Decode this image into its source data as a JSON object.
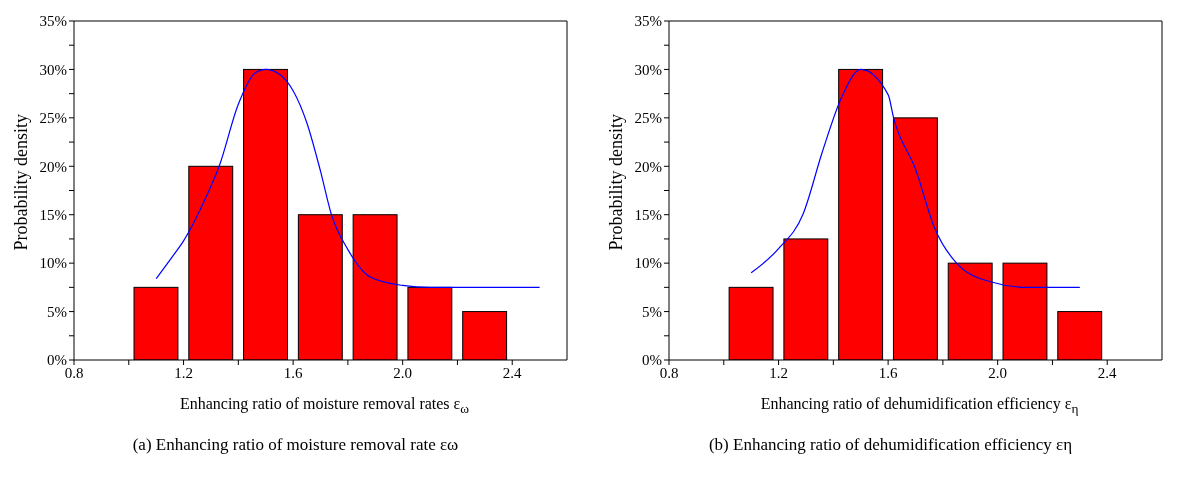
{
  "chart_data": [
    {
      "type": "histogram",
      "xlabel": "Enhancing ratio of moisture removal rates ε$_{ω}$",
      "ylabel": "Probability density",
      "annotations": [
        "(a) Enhancing ratio of moisture removal rate εω"
      ],
      "bins": [
        1.0,
        1.2,
        1.4,
        1.6,
        1.8,
        2.0,
        2.2,
        2.4
      ],
      "values": [
        7.5,
        20,
        30,
        15,
        15,
        7.5,
        5
      ],
      "color": "#ff0000",
      "series": [
        {
          "type": "line",
          "color": "#0000ff",
          "x": [
            1.1,
            1.16,
            1.2,
            1.28,
            1.33,
            1.4,
            1.46,
            1.5,
            1.55,
            1.6,
            1.65,
            1.7,
            1.74,
            1.8,
            1.88,
            2.0,
            2.1,
            2.5
          ],
          "values": [
            8.4,
            10.7,
            12.3,
            16.7,
            20,
            26.4,
            29.6,
            30,
            29.5,
            27.8,
            24.5,
            19.5,
            15,
            11.4,
            8.6,
            7.7,
            7.5,
            7.5
          ]
        }
      ],
      "marker": "none",
      "grid": false,
      "legend": false,
      "xlim": [
        0.8,
        2.6
      ],
      "xticks": [
        0.8,
        {
          "value": 1.0,
          "label": null
        },
        1.2,
        {
          "value": 1.4,
          "label": null
        },
        1.6,
        {
          "value": 1.8,
          "label": null
        },
        {
          "value": 2.0,
          "label": "2.0"
        },
        {
          "value": 2.2,
          "label": null
        },
        2.4
      ],
      "ylim": [
        0,
        35
      ],
      "yticks": [
        {
          "value": 0,
          "label": "0%"
        },
        {
          "value": 2.5,
          "label": null
        },
        {
          "value": 5,
          "label": "5%"
        },
        {
          "value": 7.5,
          "label": null
        },
        {
          "value": 10,
          "label": "10%"
        },
        {
          "value": 12.5,
          "label": null
        },
        {
          "value": 15,
          "label": "15%"
        },
        {
          "value": 17.5,
          "label": null
        },
        {
          "value": 20,
          "label": "20%"
        },
        {
          "value": 22.5,
          "label": null
        },
        {
          "value": 25,
          "label": "25%"
        },
        {
          "value": 27.5,
          "label": null
        },
        {
          "value": 30,
          "label": "30%"
        },
        {
          "value": 32.5,
          "label": null
        },
        {
          "value": 35,
          "label": "35%"
        }
      ]
    },
    {
      "type": "histogram",
      "xlabel": "Enhancing ratio of dehumidification efficiency ε$_{η}$",
      "ylabel": "Probability density",
      "annotations": [
        "(b) Enhancing ratio of dehumidification efficiency εη"
      ],
      "bins": [
        1.0,
        1.2,
        1.4,
        1.6,
        1.8,
        2.0,
        2.2,
        2.4
      ],
      "values": [
        7.5,
        12.5,
        30,
        25,
        10,
        10,
        5
      ],
      "color": "#ff0000",
      "series": [
        {
          "type": "line",
          "color": "#0000ff",
          "x": [
            1.1,
            1.2,
            1.29,
            1.36,
            1.43,
            1.5,
            1.6,
            1.62,
            1.7,
            1.77,
            1.85,
            1.97,
            2.11,
            2.3
          ],
          "values": [
            9.0,
            11.5,
            15.1,
            21.5,
            27.1,
            30,
            27.4,
            25,
            19.7,
            13.6,
            10,
            8.1,
            7.5,
            7.5
          ]
        }
      ],
      "marker": "none",
      "grid": false,
      "legend": false,
      "xlim": [
        0.8,
        2.6
      ],
      "xticks": [
        0.8,
        {
          "value": 1.0,
          "label": null
        },
        1.2,
        {
          "value": 1.4,
          "label": null
        },
        1.6,
        {
          "value": 1.8,
          "label": null
        },
        {
          "value": 2.0,
          "label": "2.0"
        },
        {
          "value": 2.2,
          "label": null
        },
        2.4
      ],
      "ylim": [
        0,
        35
      ],
      "yticks": [
        {
          "value": 0,
          "label": "0%"
        },
        {
          "value": 2.5,
          "label": null
        },
        {
          "value": 5,
          "label": "5%"
        },
        {
          "value": 7.5,
          "label": null
        },
        {
          "value": 10,
          "label": "10%"
        },
        {
          "value": 12.5,
          "label": null
        },
        {
          "value": 15,
          "label": "15%"
        },
        {
          "value": 17.5,
          "label": null
        },
        {
          "value": 20,
          "label": "20%"
        },
        {
          "value": 22.5,
          "label": null
        },
        {
          "value": 25,
          "label": "25%"
        },
        {
          "value": 27.5,
          "label": null
        },
        {
          "value": 30,
          "label": "30%"
        },
        {
          "value": 32.5,
          "label": null
        },
        {
          "value": 35,
          "label": "35%"
        }
      ]
    }
  ]
}
